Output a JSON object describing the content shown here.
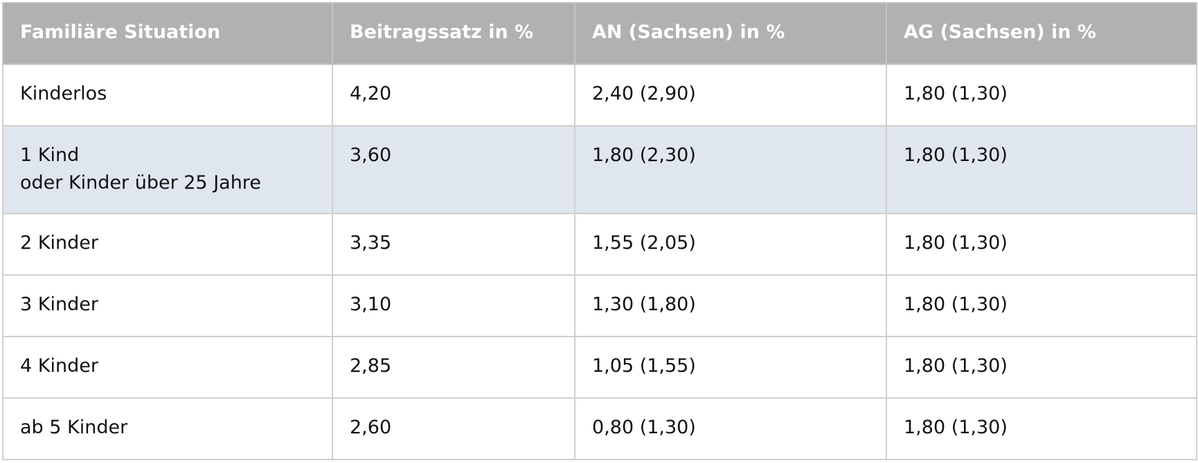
{
  "table": {
    "header": [
      "Familiäre Situation",
      "Beitragssatz in %",
      "AN (Sachsen) in %",
      "AG (Sachsen) in %"
    ],
    "rows": [
      [
        "Kinderlos",
        "4,20",
        "2,40 (2,90)",
        "1,80 (1,30)"
      ],
      [
        "1 Kind\noder Kinder über 25 Jahre",
        "3,60",
        "1,80 (2,30)",
        "1,80 (1,30)"
      ],
      [
        "2 Kinder",
        "3,35",
        "1,55 (2,05)",
        "1,80 (1,30)"
      ],
      [
        "3 Kinder",
        "3,10",
        "1,30 (1,80)",
        "1,80 (1,30)"
      ],
      [
        "4 Kinder",
        "2,85",
        "1,05 (1,55)",
        "1,80 (1,30)"
      ],
      [
        "ab 5 Kinder",
        "2,60",
        "0,80 (1,30)",
        "1,80 (1,30)"
      ]
    ]
  }
}
